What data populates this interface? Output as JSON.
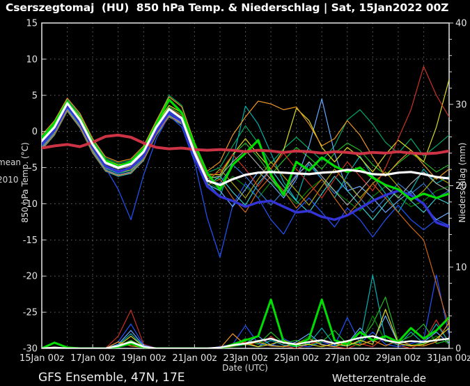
{
  "title": "Cserszegtomaj  (HU)  850 hPa Temp. & Niederschlag | Sat, 15Jan2022 00Z",
  "footer": {
    "left": "GFS Ensemble, 47N, 17E",
    "right": "Wetterzentrale.de"
  },
  "left_edge_labels": {
    "mean": "mean",
    "y2010": "2010"
  },
  "colors": {
    "background": "#000000",
    "frame": "#d9d9d9",
    "grid": "#6a6a6a",
    "text": "#e5e5e5"
  },
  "chart_data": {
    "type": "line",
    "title": "Cserszegtomaj (HU) 850 hPa Temp. & Niederschlag | Sat, 15Jan2022 00Z",
    "xlabel": "Date (UTC)",
    "ylabel_left": "850 hPa Temp. (°C)",
    "ylabel_right": "Niederschlag (mm)",
    "xlim_days": [
      0,
      16
    ],
    "ylim_left": [
      -30,
      15
    ],
    "ylim_right": [
      0,
      40
    ],
    "grid": true,
    "x_grid_step_days": 1,
    "y_grid_step": 5,
    "yticks_left": [
      15,
      10,
      5,
      0,
      -5,
      -10,
      -15,
      -20,
      -25,
      -30
    ],
    "yticks_right": [
      40,
      30,
      20,
      10,
      0
    ],
    "yticks_right_minor_step": 2,
    "x_ticks": [
      {
        "t": 0,
        "label": "15Jan 00z"
      },
      {
        "t": 2,
        "label": "17Jan 00z"
      },
      {
        "t": 4,
        "label": "19Jan 00z"
      },
      {
        "t": 6,
        "label": "21Jan 00z"
      },
      {
        "t": 8,
        "label": "23Jan 00z"
      },
      {
        "t": 10,
        "label": "25Jan 00z"
      },
      {
        "t": 12,
        "label": "27Jan 00z"
      },
      {
        "t": 14,
        "label": "29Jan 00z"
      },
      {
        "t": 16,
        "label": "31Jan 00z"
      }
    ],
    "x": [
      0,
      0.5,
      1,
      1.5,
      2,
      2.5,
      3,
      3.5,
      4,
      4.5,
      5,
      5.5,
      6,
      6.5,
      7,
      7.5,
      8,
      8.5,
      9,
      9.5,
      10,
      10.5,
      11,
      11.5,
      12,
      12.5,
      13,
      13.5,
      14,
      14.5,
      15,
      15.5,
      16
    ],
    "temp_series": [
      {
        "name": "member-01",
        "color": "#22bb22",
        "width": 1.2,
        "values": [
          -1.1,
          0.9,
          4.0,
          1.9,
          -1.6,
          -4.1,
          -4.9,
          -4.4,
          -2.6,
          0.9,
          3.4,
          2.3,
          -2.1,
          -6.1,
          -6.6,
          -3.2,
          -1.6,
          -3.6,
          -6.0,
          -4.0,
          -2.2,
          -3.6,
          -5.2,
          -3.0,
          -1.6,
          -2.6,
          -4.6,
          -6.0,
          -4.4,
          -3.0,
          -4.2,
          -5.6,
          -4.6
        ]
      },
      {
        "name": "member-02",
        "color": "#008800",
        "width": 1.2,
        "values": [
          -1.8,
          0.2,
          3.5,
          1.2,
          -2.3,
          -4.8,
          -5.5,
          -5.1,
          -3.3,
          0.2,
          2.7,
          1.7,
          -2.8,
          -6.8,
          -8.2,
          -6.2,
          -7.6,
          -9.2,
          -7.0,
          -8.4,
          -10.0,
          -8.0,
          -6.6,
          -8.2,
          -9.6,
          -11.0,
          -9.0,
          -7.6,
          -9.0,
          -10.4,
          -9.6,
          -8.2,
          -7.6
        ]
      },
      {
        "name": "member-03",
        "color": "#00aa66",
        "width": 1.2,
        "values": [
          -0.7,
          1.3,
          4.4,
          2.3,
          -1.2,
          -3.7,
          -4.4,
          -4.0,
          -2.2,
          1.3,
          5.0,
          3.6,
          -1.7,
          -5.7,
          -5.0,
          -2.0,
          0.8,
          -1.6,
          -4.4,
          -2.4,
          -0.8,
          -2.4,
          -4.0,
          -2.0,
          1.6,
          3.0,
          1.0,
          -1.5,
          -3.0,
          -1.0,
          -3.4,
          -2.0,
          -0.5
        ]
      },
      {
        "name": "member-04",
        "color": "#00b3b3",
        "width": 1.2,
        "values": [
          -2.1,
          -0.1,
          3.2,
          0.9,
          -2.6,
          -5.1,
          -5.8,
          -5.4,
          -3.6,
          -0.1,
          2.4,
          1.4,
          -3.1,
          -7.1,
          -9.0,
          -4.0,
          3.5,
          1.0,
          -3.0,
          -7.0,
          -9.5,
          -4.2,
          -6.6,
          -9.2,
          -6.0,
          -3.4,
          -6.2,
          -8.6,
          -11.2,
          -8.2,
          -5.2,
          -7.2,
          -6.2
        ]
      },
      {
        "name": "member-05",
        "color": "#33cccc",
        "width": 1.2,
        "values": [
          -2.5,
          -0.5,
          2.8,
          0.5,
          -3.0,
          -5.5,
          -6.2,
          -5.8,
          -4.0,
          -0.5,
          2.0,
          1.0,
          -3.5,
          -7.5,
          -6.2,
          -8.4,
          -10.2,
          -7.2,
          -5.2,
          -7.6,
          -9.6,
          -11.2,
          -8.6,
          -6.2,
          -8.2,
          -10.2,
          -12.2,
          -10.0,
          -8.0,
          -9.6,
          -11.2,
          -9.2,
          -10.0
        ]
      },
      {
        "name": "member-06",
        "color": "#2255ff",
        "width": 1.2,
        "values": [
          -2.0,
          0.0,
          3.3,
          1.0,
          -2.4,
          -5.0,
          -8.0,
          -12.2,
          -6.0,
          -1.0,
          2.2,
          0.6,
          -4.2,
          -12.0,
          -17.4,
          -10.2,
          -7.2,
          -9.2,
          -12.2,
          -14.2,
          -11.0,
          -9.2,
          -11.2,
          -13.2,
          -10.6,
          -12.2,
          -14.6,
          -12.2,
          -10.2,
          -12.2,
          -13.6,
          -12.2,
          -13.0
        ]
      },
      {
        "name": "member-07",
        "color": "#66aaff",
        "width": 1.2,
        "values": [
          -2.3,
          -0.3,
          3.0,
          0.7,
          -2.8,
          -5.3,
          -6.0,
          -5.6,
          -3.8,
          -0.3,
          2.2,
          1.2,
          -3.3,
          -7.3,
          -8.2,
          -10.4,
          -8.0,
          -5.6,
          -7.2,
          -9.2,
          -6.6,
          -2.0,
          4.5,
          -3.0,
          -8.2,
          -7.6,
          -9.2,
          -11.2,
          -9.6,
          -8.2,
          -10.2,
          -12.2,
          -11.2
        ]
      },
      {
        "name": "member-08",
        "color": "#3377cc",
        "width": 1.2,
        "values": [
          -1.7,
          0.3,
          3.6,
          1.3,
          -2.2,
          -4.7,
          -5.4,
          -5.0,
          -3.2,
          0.3,
          2.8,
          1.8,
          -2.7,
          -6.7,
          -7.2,
          -4.6,
          -6.2,
          -8.2,
          -10.2,
          -8.2,
          -6.0,
          -4.6,
          -6.6,
          -8.6,
          -7.0,
          -9.2,
          -11.2,
          -9.2,
          -7.2,
          -8.6,
          -7.2,
          -9.2,
          -8.2
        ]
      },
      {
        "name": "member-09",
        "color": "#dddd22",
        "width": 1.2,
        "values": [
          -0.9,
          1.1,
          4.2,
          2.1,
          -1.4,
          -3.9,
          -4.6,
          -4.2,
          -2.4,
          1.1,
          3.6,
          2.6,
          -1.9,
          -5.9,
          -6.0,
          -3.2,
          -1.0,
          -3.2,
          -5.2,
          -2.6,
          3.2,
          1.5,
          -2.2,
          -4.2,
          -2.2,
          -3.6,
          -5.6,
          -3.2,
          -1.2,
          -2.6,
          -4.2,
          0.6,
          7.2
        ]
      },
      {
        "name": "member-10",
        "color": "#aaaa00",
        "width": 1.2,
        "values": [
          -2.0,
          0.0,
          3.3,
          1.0,
          -2.5,
          -5.0,
          -5.7,
          -5.3,
          -3.5,
          0.0,
          2.5,
          1.5,
          -3.0,
          -7.0,
          -5.2,
          -7.2,
          -9.2,
          -6.6,
          -4.2,
          -6.2,
          -8.2,
          -10.2,
          -7.6,
          -5.2,
          -7.2,
          -9.2,
          -7.2,
          -5.6,
          -7.6,
          -9.6,
          -8.2,
          -6.2,
          -7.2
        ]
      },
      {
        "name": "member-11",
        "color": "#ee9922",
        "width": 1.2,
        "values": [
          -0.5,
          1.5,
          4.6,
          2.5,
          -1.0,
          -3.5,
          -4.2,
          -3.8,
          -2.0,
          1.5,
          4.8,
          3.4,
          -1.5,
          -5.5,
          -4.2,
          -0.5,
          2.0,
          4.2,
          3.8,
          3.0,
          3.4,
          1.0,
          -2.0,
          -1.0,
          1.5,
          -0.5,
          -3.5,
          -6.2,
          -4.2,
          -2.6,
          -4.6,
          -6.6,
          -5.2
        ]
      },
      {
        "name": "member-12",
        "color": "#cc6611",
        "width": 1.2,
        "values": [
          -2.4,
          -0.4,
          2.9,
          0.6,
          -2.9,
          -5.4,
          -6.1,
          -5.7,
          -3.9,
          -0.4,
          2.1,
          1.1,
          -3.4,
          -7.4,
          -6.6,
          -9.2,
          -11.2,
          -8.2,
          -6.2,
          -8.2,
          -10.6,
          -8.6,
          -6.6,
          -9.2,
          -11.6,
          -9.6,
          -7.2,
          -9.2,
          -11.2,
          -13.2,
          -15.0,
          -21.0,
          -27.0
        ]
      },
      {
        "name": "member-13",
        "color": "#cc3322",
        "width": 1.2,
        "values": [
          -1.3,
          0.7,
          3.8,
          1.7,
          -1.8,
          -4.3,
          -5.0,
          -4.6,
          -2.8,
          0.7,
          3.2,
          2.2,
          -2.3,
          -6.3,
          -5.6,
          -3.2,
          -5.2,
          -7.6,
          -5.2,
          -3.0,
          -5.2,
          -7.2,
          -9.2,
          -6.6,
          -4.2,
          -6.2,
          -8.2,
          -5.0,
          -1.0,
          3.0,
          9.0,
          5.0,
          2.0
        ]
      },
      {
        "name": "member-14",
        "color": "#aaaaaa",
        "width": 1.2,
        "values": [
          -1.5,
          0.5,
          3.8,
          1.5,
          -2.0,
          -4.5,
          -5.2,
          -4.8,
          -3.0,
          0.5,
          3.0,
          2.0,
          -2.5,
          -6.5,
          -6.2,
          -4.2,
          -2.6,
          -4.6,
          -6.6,
          -8.6,
          -6.2,
          -4.2,
          -6.2,
          -8.2,
          -10.2,
          -8.2,
          -6.2,
          -7.6,
          -9.2,
          -7.2,
          -5.6,
          -7.2,
          -8.2
        ]
      },
      {
        "name": "gfs-control",
        "color": "#3434d6",
        "width": 3.5,
        "values": [
          -1.8,
          0.2,
          3.5,
          1.2,
          -2.2,
          -4.8,
          -5.6,
          -5.0,
          -3.4,
          0.0,
          2.6,
          1.4,
          -3.6,
          -7.6,
          -9.0,
          -9.6,
          -10.4,
          -9.8,
          -9.6,
          -10.4,
          -11.2,
          -11.0,
          -11.8,
          -12.2,
          -11.6,
          -10.6,
          -9.6,
          -8.8,
          -8.2,
          -8.8,
          -10.0,
          -12.6,
          -13.2
        ]
      },
      {
        "name": "gfs-operational",
        "color": "#00dd00",
        "width": 3.2,
        "values": [
          -1.0,
          1.2,
          4.1,
          1.8,
          -1.6,
          -4.0,
          -4.8,
          -4.2,
          -2.4,
          1.0,
          4.4,
          2.6,
          -1.8,
          -5.8,
          -8.0,
          -4.6,
          -3.0,
          -1.2,
          -6.0,
          -8.8,
          -4.2,
          -5.4,
          -3.6,
          -4.8,
          -5.6,
          -5.0,
          -6.4,
          -7.4,
          -8.0,
          -9.4,
          -8.6,
          -9.2,
          -8.6
        ]
      },
      {
        "name": "climate-mean",
        "color": "#cc3344",
        "width": 4.0,
        "values": [
          -2.3,
          -2.0,
          -1.8,
          -2.1,
          -1.5,
          -0.7,
          -0.5,
          -0.8,
          -1.6,
          -2.2,
          -2.4,
          -2.3,
          -2.5,
          -2.6,
          -2.5,
          -2.6,
          -2.8,
          -2.6,
          -2.7,
          -2.9,
          -2.7,
          -2.8,
          -3.0,
          -2.8,
          -2.9,
          -3.1,
          -2.9,
          -3.0,
          -2.8,
          -3.0,
          -3.1,
          -3.0,
          -2.7
        ]
      },
      {
        "name": "ensemble-mean",
        "color": "#ffffff",
        "width": 3.2,
        "values": [
          -1.3,
          0.6,
          3.9,
          1.6,
          -1.8,
          -4.3,
          -5.0,
          -4.5,
          -2.8,
          0.6,
          3.1,
          1.8,
          -3.0,
          -6.8,
          -7.4,
          -6.6,
          -6.0,
          -5.7,
          -5.6,
          -5.7,
          -5.8,
          -5.9,
          -5.7,
          -5.6,
          -5.3,
          -5.5,
          -5.9,
          -6.0,
          -5.7,
          -5.6,
          -5.9,
          -6.3,
          -6.5
        ]
      }
    ],
    "precip_series": [
      {
        "name": "precip-member-red",
        "color": "#cc3322",
        "width": 1.2,
        "values": [
          0,
          0,
          0,
          0,
          0,
          0,
          1.5,
          4.7,
          0.5,
          0,
          0,
          0,
          0,
          0,
          0,
          0.3,
          0.8,
          0.2,
          1.5,
          0.3,
          0,
          0.5,
          1.0,
          0.2,
          0,
          0.6,
          0.2,
          1.5,
          0.4,
          0,
          0.8,
          3.5,
          0.5
        ]
      },
      {
        "name": "precip-member-blue",
        "color": "#2255ff",
        "width": 1.2,
        "values": [
          0,
          0,
          0,
          0,
          0,
          0,
          0.8,
          3.0,
          0.4,
          0,
          0,
          0,
          0,
          0,
          0.2,
          0.5,
          2.8,
          0.6,
          0.3,
          1.2,
          0.4,
          0.2,
          0.8,
          0.3,
          3.8,
          0.6,
          2.0,
          0.5,
          0.2,
          0.6,
          1.0,
          9.0,
          1.5
        ]
      },
      {
        "name": "precip-member-lightblue",
        "color": "#66aaff",
        "width": 1.2,
        "values": [
          0,
          0,
          0,
          0,
          0,
          0,
          0.5,
          2.2,
          0.3,
          0,
          0,
          0,
          0,
          0,
          0,
          0.2,
          0.6,
          1.5,
          0.4,
          0.2,
          0.8,
          1.8,
          0.5,
          0.2,
          0.6,
          2.5,
          0.8,
          4.0,
          0.6,
          0.3,
          0.8,
          2.0,
          0.6
        ]
      },
      {
        "name": "precip-member-teal",
        "color": "#00b3b3",
        "width": 1.2,
        "values": [
          0,
          0,
          0,
          0,
          0,
          0,
          0.4,
          1.8,
          0.2,
          0,
          0,
          0,
          0,
          0,
          0,
          0.3,
          0.5,
          0.2,
          1.0,
          0.4,
          0.2,
          0.6,
          2.5,
          0.4,
          0.3,
          0.8,
          9.0,
          1.0,
          0.4,
          2.0,
          0.6,
          3.0,
          0.8
        ]
      },
      {
        "name": "precip-member-green",
        "color": "#22bb22",
        "width": 1.2,
        "values": [
          0,
          0,
          0,
          0,
          0,
          0,
          0.3,
          1.0,
          0.2,
          0,
          0,
          0,
          0,
          0,
          0,
          0.4,
          1.2,
          0.5,
          2.0,
          0.6,
          1.0,
          0.4,
          0.8,
          2.2,
          0.5,
          0.8,
          3.0,
          6.3,
          0.8,
          1.5,
          3.0,
          0.6,
          1.0
        ]
      },
      {
        "name": "precip-member-darkgreen",
        "color": "#008800",
        "width": 1.2,
        "values": [
          0,
          0,
          0,
          0,
          0,
          0,
          0.2,
          0.6,
          0.1,
          0,
          0,
          0,
          0,
          0,
          0,
          0.2,
          0.4,
          1.0,
          0.3,
          0.2,
          0.5,
          1.5,
          0.4,
          0.2,
          0.6,
          0.3,
          4.0,
          0.8,
          1.0,
          0.4,
          0.6,
          1.5,
          0.5
        ]
      },
      {
        "name": "precip-member-yellow",
        "color": "#dddd22",
        "width": 1.2,
        "values": [
          0,
          0,
          0,
          0,
          0,
          0,
          0.3,
          1.5,
          0.2,
          0,
          0,
          0,
          0,
          0,
          0,
          0.3,
          0.6,
          0.2,
          0.5,
          1.0,
          0.3,
          0.5,
          0.2,
          0.6,
          0.3,
          1.0,
          0.5,
          4.8,
          0.6,
          0.3,
          0.5,
          1.2,
          2.5
        ]
      },
      {
        "name": "precip-member-orange",
        "color": "#ee9922",
        "width": 1.2,
        "values": [
          0,
          0,
          0,
          0,
          0,
          0,
          0.8,
          0.3,
          0.1,
          0,
          0,
          0,
          0,
          0,
          0,
          1.8,
          0.4,
          0.8,
          0.3,
          0.2,
          0.6,
          1.2,
          0.4,
          0.2,
          0.8,
          0.4,
          1.0,
          0.3,
          1.0,
          0.4,
          0.3,
          0.8,
          3.2
        ]
      },
      {
        "name": "precip-operational",
        "color": "#00dd00",
        "width": 3.0,
        "values": [
          0,
          0.7,
          0.1,
          0,
          0,
          0,
          0.2,
          0.6,
          0.1,
          0,
          0,
          0,
          0,
          0,
          0,
          0.5,
          1.0,
          1.5,
          6.0,
          0.8,
          0.3,
          1.2,
          6.0,
          1.0,
          0.5,
          2.0,
          1.0,
          1.5,
          0.8,
          2.5,
          1.2,
          2.2,
          3.8
        ]
      },
      {
        "name": "precip-ensemble-mean",
        "color": "#ffffff",
        "width": 2.5,
        "values": [
          0,
          0.1,
          0,
          0,
          0,
          0,
          0.3,
          0.8,
          0.2,
          0,
          0,
          0,
          0,
          0,
          0.1,
          0.4,
          0.6,
          0.9,
          1.2,
          0.7,
          0.5,
          0.8,
          1.0,
          0.6,
          0.9,
          1.3,
          1.5,
          1.0,
          0.7,
          0.9,
          0.8,
          1.0,
          1.2
        ]
      }
    ]
  }
}
